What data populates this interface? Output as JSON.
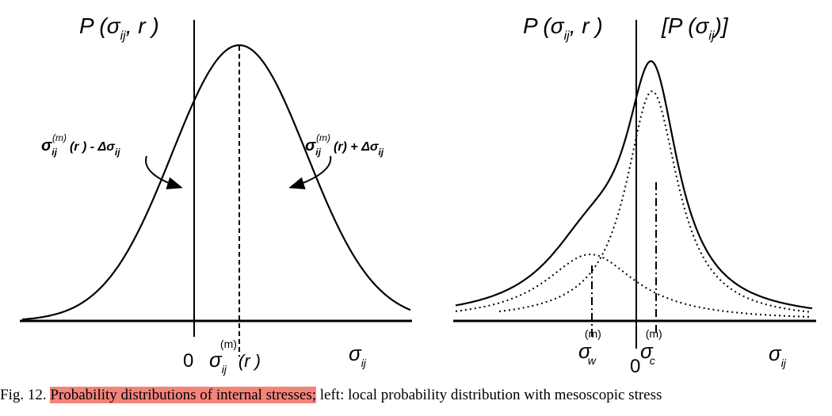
{
  "figure": {
    "left_panel": {
      "y_axis_label": "P (σ",
      "y_axis_sub": "ij",
      "y_axis_tail": ", r )",
      "annotation_left": "σ",
      "annotation_left_sub": "ij",
      "annotation_left_sup": "(m)",
      "annotation_left_tail": "(r )  - Δσ",
      "annotation_left_tail_sub": "ij",
      "annotation_right": "σ",
      "annotation_right_sub": "ij",
      "annotation_right_sup": "(m)",
      "annotation_right_tail": "(r)  + Δσ",
      "annotation_right_tail_sub": "ij",
      "origin": "0",
      "mean_label": "σ",
      "mean_sub": "ij",
      "mean_sup": "(m)",
      "mean_tail": "(r )",
      "x_axis_label": "σ",
      "x_axis_sub": "ij"
    },
    "right_panel": {
      "y_axis_label": "P (σ",
      "y_axis_sub": "ij",
      "y_axis_tail": ", r )",
      "bracket_label": "[P (σ",
      "bracket_sub": "ij",
      "bracket_tail": ")]",
      "wall_label": "σ",
      "wall_sub": "w",
      "wall_sup": "(m)",
      "cell_label": "σ",
      "cell_sub": "c",
      "cell_sup": "(m)",
      "origin": "0",
      "x_axis_label": "σ",
      "x_axis_sub": "ij"
    }
  },
  "caption": {
    "prefix": "Fig. 12. ",
    "highlight": "Probability distributions of internal stresses;",
    "rest": " left: local probability distribution with mesoscopic stress"
  },
  "colors": {
    "highlight": "#f4847a",
    "ink": "#000000"
  }
}
